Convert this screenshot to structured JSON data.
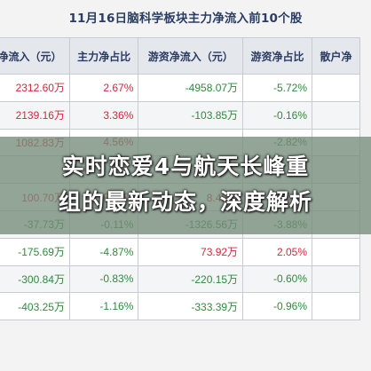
{
  "title": "11月16日脑科学板块主力净流入前10个股",
  "table": {
    "headers": [
      "净流入（元）",
      "主力净占比",
      "游资净流入（元）",
      "游资净占比",
      "散户净"
    ],
    "rows": [
      {
        "c1": "2312.60万",
        "c2": "2.67%",
        "c3": "-4958.07万",
        "c4": "-5.72%",
        "c5": "",
        "c1c": "up",
        "c2c": "up",
        "c3c": "down",
        "c4c": "down"
      },
      {
        "c1": "2139.16万",
        "c2": "3.36%",
        "c3": "-103.85万",
        "c4": "-0.16%",
        "c5": "",
        "c1c": "up",
        "c2c": "up",
        "c3c": "down",
        "c4c": "down"
      },
      {
        "c1": "1082.83万",
        "c2": "4.56%",
        "c3": "",
        "c4": "-2.82%",
        "c5": "",
        "c1c": "up",
        "c2c": "up",
        "c3c": "down",
        "c4c": "down"
      },
      {
        "c1": "",
        "c2": "",
        "c3": "",
        "c4": "",
        "c5": "",
        "c1c": "up",
        "c2c": "up",
        "c3c": "down",
        "c4c": "down"
      },
      {
        "c1": "100.70万",
        "c2": "0.29%",
        "c3": "8.40万",
        "c4": "0.02%",
        "c5": "",
        "c1c": "up",
        "c2c": "up",
        "c3c": "up",
        "c4c": "up"
      },
      {
        "c1": "-37.73万",
        "c2": "-0.11%",
        "c3": "-1326.56万",
        "c4": "-3.88%",
        "c5": "",
        "c1c": "down",
        "c2c": "down",
        "c3c": "down",
        "c4c": "down"
      },
      {
        "c1": "-175.69万",
        "c2": "-4.87%",
        "c3": "73.92万",
        "c4": "2.05%",
        "c5": "",
        "c1c": "down",
        "c2c": "down",
        "c3c": "up",
        "c4c": "up"
      },
      {
        "c1": "-300.84万",
        "c2": "-0.83%",
        "c3": "-220.15万",
        "c4": "-0.60%",
        "c5": "",
        "c1c": "down",
        "c2c": "down",
        "c3c": "down",
        "c4c": "down"
      },
      {
        "c1": "-403.25万",
        "c2": "-1.16%",
        "c3": "-333.39万",
        "c4": "-0.96%",
        "c5": "",
        "c1c": "down",
        "c2c": "down",
        "c3c": "down",
        "c4c": "down"
      }
    ]
  },
  "headline": {
    "line1": "实时恋爱4与航天长峰重",
    "line2": "组的最新动态，深度解析"
  },
  "colors": {
    "up": "#d7263d",
    "down": "#2f8a3e",
    "header_bg": "#e4e7ec",
    "title": "#2a3d63"
  }
}
